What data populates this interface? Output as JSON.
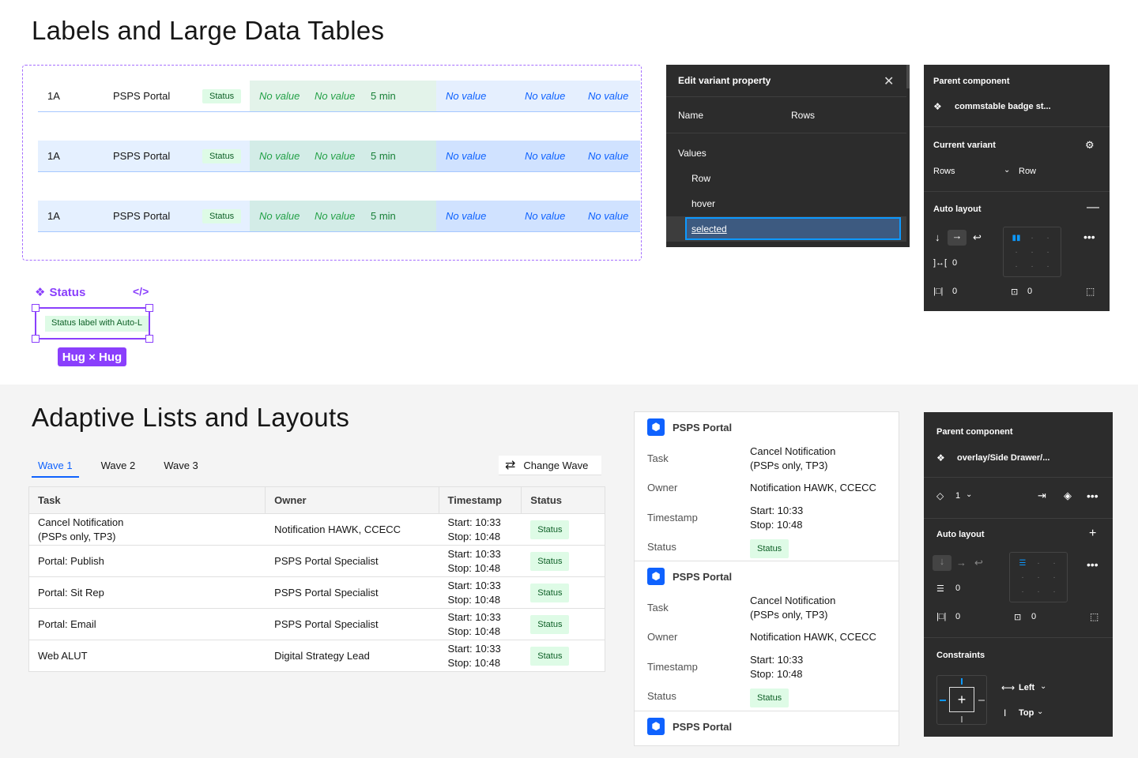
{
  "sections": {
    "top_title": "Labels and Large Data Tables",
    "bottom_title": "Adaptive Lists and Layouts"
  },
  "data_rows": [
    {
      "id": "1A",
      "name": "PSPS Portal",
      "badge": "Status",
      "nv1": "No value",
      "nv2": "No value",
      "dur": "5 min",
      "nvb1": "No value",
      "nvb2": "No value",
      "nvb3": "No value"
    },
    {
      "id": "1A",
      "name": "PSPS Portal",
      "badge": "Status",
      "nv1": "No value",
      "nv2": "No value",
      "dur": "5 min",
      "nvb1": "No value",
      "nvb2": "No value",
      "nvb3": "No value"
    },
    {
      "id": "1A",
      "name": "PSPS Portal",
      "badge": "Status",
      "nv1": "No value",
      "nv2": "No value",
      "dur": "5 min",
      "nvb1": "No value",
      "nvb2": "No value",
      "nvb3": "No value"
    }
  ],
  "status_component": {
    "name": "Status",
    "code_icon": "</>",
    "label": "Status label with Auto-L",
    "hug": "Hug × Hug"
  },
  "edit_variant": {
    "title": "Edit variant property",
    "name_label": "Name",
    "name_value": "Rows",
    "values_label": "Values",
    "values": [
      "Row",
      "hover",
      "selected"
    ]
  },
  "parent_panel_1": {
    "parent_label": "Parent component",
    "component": "commstable badge st...",
    "current_variant": "Current variant",
    "variant_prop": "Rows",
    "variant_value": "Row",
    "auto_layout": "Auto layout",
    "gap": "0",
    "pad_h": "0",
    "pad_v": "0"
  },
  "tabs": [
    "Wave 1",
    "Wave 2",
    "Wave 3"
  ],
  "change_wave": "Change Wave",
  "table": {
    "headers": [
      "Task",
      "Owner",
      "Timestamp",
      "Status"
    ],
    "rows": [
      {
        "task": "Cancel Notification\n(PSPs only, TP3)",
        "owner": "Notification HAWK, CCECC",
        "ts": "Start: 10:33\nStop: 10:48",
        "status": "Status"
      },
      {
        "task": "Portal: Publish",
        "owner": "PSPS Portal Specialist",
        "ts": "Start: 10:33\nStop: 10:48",
        "status": "Status"
      },
      {
        "task": "Portal: Sit Rep",
        "owner": "PSPS Portal Specialist",
        "ts": "Start: 10:33\nStop: 10:48",
        "status": "Status"
      },
      {
        "task": "Portal: Email",
        "owner": "PSPS Portal Specialist",
        "ts": "Start: 10:33\nStop: 10:48",
        "status": "Status"
      },
      {
        "task": "Web ALUT",
        "owner": "Digital Strategy Lead",
        "ts": "Start: 10:33\nStop: 10:48",
        "status": "Status"
      }
    ]
  },
  "cards": [
    {
      "title": "PSPS Portal",
      "task_label": "Task",
      "task": "Cancel Notification\n(PSPs only, TP3)",
      "owner_label": "Owner",
      "owner": "Notification HAWK, CCECC",
      "ts_label": "Timestamp",
      "ts": "Start: 10:33\nStop: 10:48",
      "status_label": "Status",
      "status": "Status"
    },
    {
      "title": "PSPS Portal",
      "task_label": "Task",
      "task": "Cancel Notification\n(PSPs only, TP3)",
      "owner_label": "Owner",
      "owner": "Notification HAWK, CCECC",
      "ts_label": "Timestamp",
      "ts": "Start: 10:33\nStop: 10:48",
      "status_label": "Status",
      "status": "Status"
    },
    {
      "title": "PSPS Portal"
    }
  ],
  "parent_panel_2": {
    "parent_label": "Parent component",
    "component": "overlay/Side Drawer/...",
    "instance_num": "1",
    "auto_layout": "Auto layout",
    "gap": "0",
    "pad_h": "0",
    "pad_v": "0",
    "constraints": "Constraints",
    "h_constraint": "Left",
    "v_constraint": "Top"
  },
  "colors": {
    "accent_purple": "#8a3ffc",
    "accent_blue": "#0f62fe",
    "status_green_bg": "#defbe6",
    "panel_dark": "#2c2c2c"
  }
}
